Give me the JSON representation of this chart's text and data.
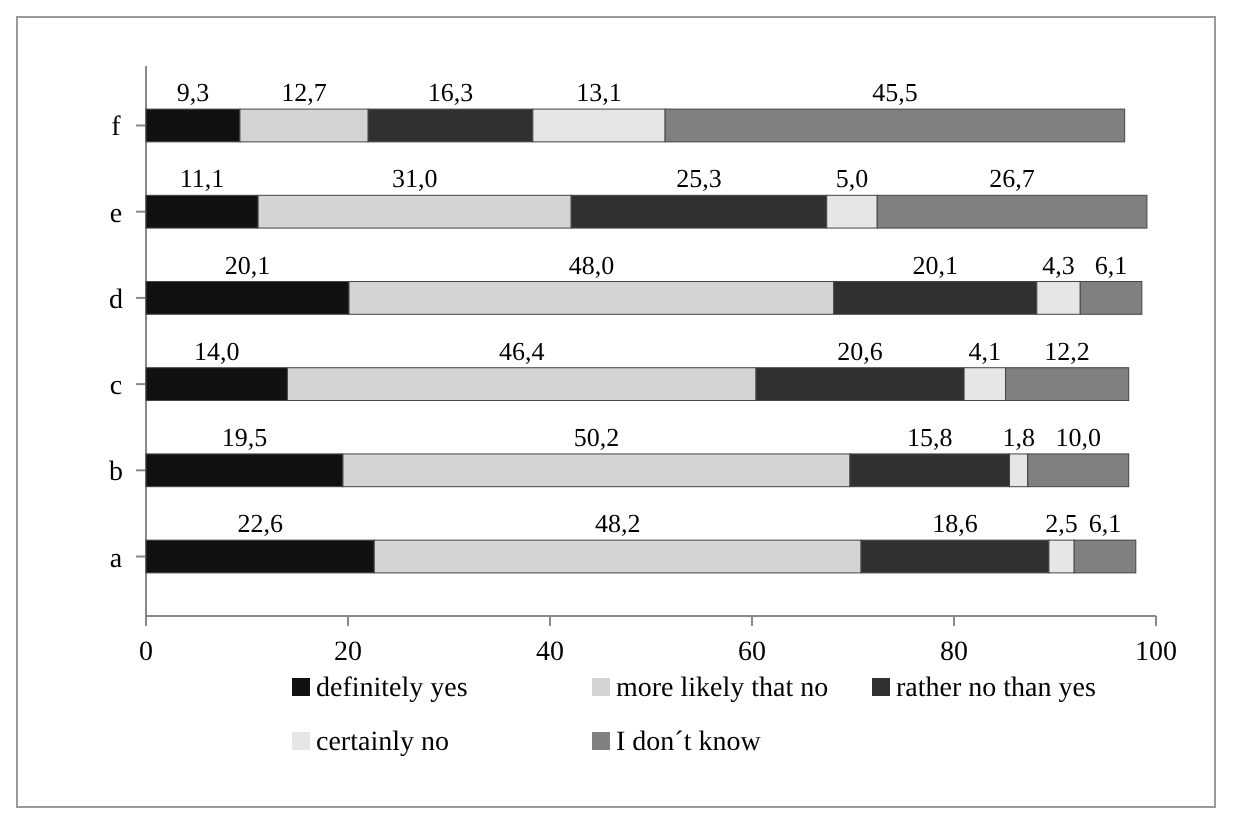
{
  "chart_data": {
    "type": "bar",
    "orientation": "horizontal",
    "stacked": true,
    "categories": [
      "f",
      "e",
      "d",
      "c",
      "b",
      "a"
    ],
    "xlim": [
      0,
      100
    ],
    "xticks": [
      0,
      20,
      40,
      60,
      80,
      100
    ],
    "grid": false,
    "legend": "bottom",
    "series": [
      {
        "name": "definitely yes",
        "color": "#111111",
        "values": [
          9.3,
          11.1,
          20.1,
          14.0,
          19.5,
          22.6
        ],
        "value_labels": [
          "9,3",
          "11,1",
          "20,1",
          "14,0",
          "19,5",
          "22,6"
        ]
      },
      {
        "name": "more likely that no",
        "color": "#d4d4d4",
        "values": [
          12.7,
          31.0,
          48.0,
          46.4,
          50.2,
          48.2
        ],
        "value_labels": [
          "12,7",
          "31,0",
          "48,0",
          "46,4",
          "50,2",
          "48,2"
        ]
      },
      {
        "name": "rather no than yes",
        "color": "#303030",
        "values": [
          16.3,
          25.3,
          20.1,
          20.6,
          15.8,
          18.6
        ],
        "value_labels": [
          "16,3",
          "25,3",
          "20,1",
          "20,6",
          "15,8",
          "18,6"
        ]
      },
      {
        "name": "certainly no",
        "color": "#e6e6e6",
        "values": [
          13.1,
          5.0,
          4.3,
          4.1,
          1.8,
          2.5
        ],
        "value_labels": [
          "13,1",
          "5,0",
          "4,3",
          "4,1",
          "1,8",
          "2,5"
        ]
      },
      {
        "name": "I don´t know",
        "color": "#808080",
        "values": [
          45.5,
          26.7,
          6.1,
          12.2,
          10.0,
          6.1
        ],
        "value_labels": [
          "45,5",
          "26,7",
          "6,1",
          "12,2",
          "10,0",
          "6,1"
        ]
      }
    ]
  }
}
